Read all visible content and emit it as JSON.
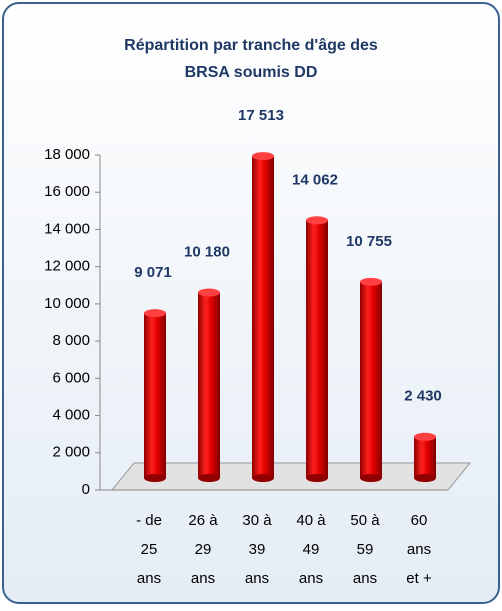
{
  "chart_data": {
    "type": "bar",
    "title": [
      "Répartition par tranche d'âge des",
      "BRSA soumis DD"
    ],
    "categories": [
      [
        "- de",
        "25",
        "ans"
      ],
      [
        "26 à",
        "29",
        "ans"
      ],
      [
        "30 à",
        "39",
        "ans"
      ],
      [
        "40 à",
        "49",
        "ans"
      ],
      [
        "50 à",
        "59",
        "ans"
      ],
      [
        "60",
        "ans",
        "et +"
      ]
    ],
    "values": [
      9071,
      10180,
      17513,
      14062,
      10755,
      2430
    ],
    "value_labels": [
      "9 071",
      "10 180",
      "17 513",
      "14 062",
      "10 755",
      "2 430"
    ],
    "color": "#e00000",
    "ylim": [
      0,
      18000
    ],
    "yticks": [
      0,
      {
        "value": 2000,
        "label": "2 000"
      },
      {
        "value": 4000,
        "label": "4 000"
      },
      {
        "value": 6000,
        "label": "6 000"
      },
      {
        "value": 8000,
        "label": "8 000"
      },
      {
        "value": 10000,
        "label": "10 000"
      },
      {
        "value": 12000,
        "label": "12 000"
      },
      {
        "value": 14000,
        "label": "14 000"
      },
      {
        "value": 16000,
        "label": "16 000"
      },
      {
        "value": 18000,
        "label": "18 000"
      }
    ],
    "grid": false
  }
}
